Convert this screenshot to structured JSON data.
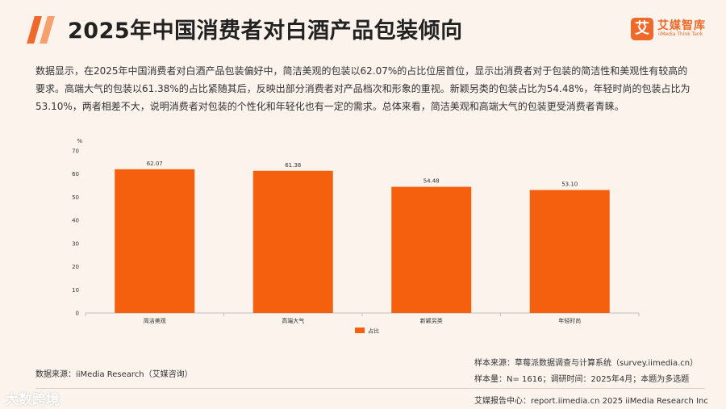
{
  "header": {
    "title": "2025年中国消费者对白酒产品包装倾向",
    "logo_mark": "艾",
    "logo_name": "艾媒智库",
    "logo_sub": "iiMedia Think Tank",
    "accent_color": "#ef6a2a"
  },
  "summary": "数据显示，在2025年中国消费者对白酒产品包装偏好中，简洁美观的包装以62.07%的占比位居首位，显示出消费者对于包装的简洁性和美观性有较高的要求。高端大气的包装以61.38%的占比紧随其后，反映出部分消费者对产品档次和形象的重视。新颖另类的包装占比为54.48%，年轻时尚的包装占比为53.10%，两者相差不大，说明消费者对包装的个性化和年轻化也有一定的需求。总体来看，简洁美观和高端大气的包装更受消费者青睐。",
  "chart_data": {
    "type": "bar",
    "categories": [
      "简洁美观",
      "高端大气",
      "新颖另类",
      "年轻时尚"
    ],
    "series": [
      {
        "name": "占比",
        "values": [
          62.07,
          61.38,
          54.48,
          53.1
        ],
        "color": "#f5600e"
      }
    ],
    "value_labels": [
      "62.07",
      "61.38",
      "54.48",
      "53.10"
    ],
    "yunit": "%",
    "ylim": [
      0,
      70
    ],
    "yticks": [
      0,
      10,
      20,
      30,
      40,
      50,
      60,
      70
    ],
    "grid": false,
    "legend_position": "bottom-center"
  },
  "footer": {
    "source_left": "数据来源：iiMedia Research（艾媒咨询）",
    "sample_source": "样本来源：草莓派数据调查与计算系统（survey.iimedia.cn）",
    "sample_info": "样本量：N= 1616；调研时间：2025年4月；本题为多选题",
    "report_center": "艾媒报告中心：report.iimedia.cn  2025 iiMedia Research Inc",
    "watermark": "大数跨境"
  }
}
